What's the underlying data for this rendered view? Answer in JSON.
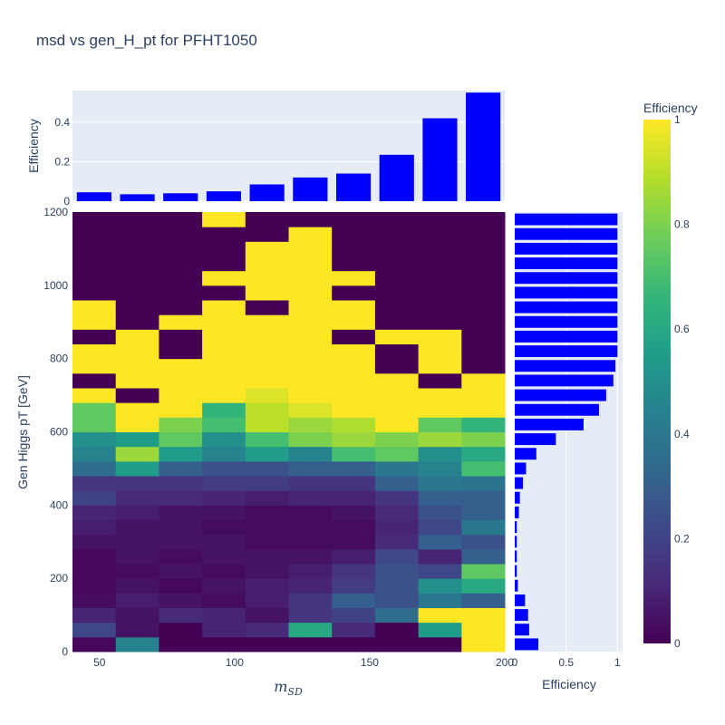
{
  "chart_data": {
    "type": "heatmap",
    "title": "msd vs gen_H_pt for PFHT1050",
    "colors": {
      "bar": "#0000ff",
      "panel_bg": "#e5ecf6",
      "text": "#2a3f5f",
      "colorscale": [
        "#440154",
        "#482878",
        "#3e4989",
        "#31688e",
        "#26828e",
        "#1f9e89",
        "#35b779",
        "#6ece58",
        "#b5de2b",
        "#fde725"
      ]
    },
    "main": {
      "xlabel": "m_SD",
      "ylabel": "Gen Higgs pT [GeV]",
      "xlim": [
        40,
        200
      ],
      "ylim": [
        0,
        1200
      ],
      "x_ticks": [
        "50",
        "100",
        "150",
        "200"
      ],
      "y_ticks": [
        "0",
        "200",
        "400",
        "600",
        "800",
        "1000",
        "1200"
      ],
      "x_bin_edges": [
        40,
        56,
        72,
        88,
        104,
        120,
        136,
        152,
        168,
        184,
        200
      ],
      "y_bin_edges": [
        0,
        40,
        80,
        120,
        160,
        200,
        240,
        280,
        320,
        360,
        400,
        440,
        480,
        520,
        560,
        600,
        640,
        680,
        720,
        760,
        800,
        840,
        880,
        920,
        960,
        1000,
        1040,
        1080,
        1120,
        1160,
        1200
      ],
      "z": [
        [
          0.02,
          0.45,
          0.0,
          0.0,
          0.0,
          0.0,
          0.0,
          0.0,
          0.0,
          1.0
        ],
        [
          0.22,
          0.05,
          0.0,
          0.1,
          0.12,
          0.6,
          0.12,
          0.0,
          0.55,
          1.0
        ],
        [
          0.1,
          0.05,
          0.12,
          0.1,
          0.05,
          0.15,
          0.2,
          0.35,
          1.0,
          1.0
        ],
        [
          0.03,
          0.08,
          0.05,
          0.03,
          0.08,
          0.15,
          0.3,
          0.25,
          0.4,
          0.3
        ],
        [
          0.02,
          0.05,
          0.02,
          0.05,
          0.08,
          0.1,
          0.18,
          0.25,
          0.5,
          0.6
        ],
        [
          0.02,
          0.03,
          0.05,
          0.03,
          0.05,
          0.08,
          0.15,
          0.25,
          0.22,
          0.75
        ],
        [
          0.02,
          0.05,
          0.03,
          0.05,
          0.05,
          0.05,
          0.08,
          0.22,
          0.1,
          0.3
        ],
        [
          0.05,
          0.05,
          0.05,
          0.05,
          0.03,
          0.03,
          0.03,
          0.12,
          0.3,
          0.25
        ],
        [
          0.08,
          0.05,
          0.05,
          0.03,
          0.03,
          0.03,
          0.03,
          0.1,
          0.22,
          0.4
        ],
        [
          0.1,
          0.08,
          0.05,
          0.05,
          0.03,
          0.03,
          0.05,
          0.12,
          0.25,
          0.3
        ],
        [
          0.2,
          0.12,
          0.12,
          0.1,
          0.08,
          0.1,
          0.1,
          0.15,
          0.3,
          0.3
        ],
        [
          0.15,
          0.15,
          0.15,
          0.18,
          0.18,
          0.15,
          0.15,
          0.3,
          0.4,
          0.38
        ],
        [
          0.35,
          0.55,
          0.3,
          0.25,
          0.25,
          0.3,
          0.3,
          0.4,
          0.45,
          0.7
        ],
        [
          0.45,
          0.85,
          0.55,
          0.45,
          0.55,
          0.45,
          0.7,
          0.75,
          0.5,
          0.6
        ],
        [
          0.5,
          0.55,
          0.75,
          0.5,
          0.7,
          0.8,
          0.85,
          0.8,
          0.85,
          0.8
        ],
        [
          0.75,
          1.0,
          0.8,
          0.7,
          0.9,
          0.85,
          0.88,
          1.0,
          0.75,
          0.65
        ],
        [
          0.75,
          1.0,
          1.0,
          0.65,
          0.9,
          0.95,
          1.0,
          1.0,
          1.0,
          1.0
        ],
        [
          1.0,
          0.0,
          1.0,
          1.0,
          0.95,
          1.0,
          1.0,
          1.0,
          1.0,
          1.0
        ],
        [
          0.0,
          1.0,
          1.0,
          1.0,
          1.0,
          1.0,
          1.0,
          1.0,
          0.0,
          1.0
        ],
        [
          1.0,
          1.0,
          1.0,
          1.0,
          1.0,
          1.0,
          1.0,
          0.0,
          1.0,
          0.0
        ],
        [
          1.0,
          1.0,
          0.0,
          1.0,
          1.0,
          1.0,
          1.0,
          0.0,
          1.0,
          0.0
        ],
        [
          0.0,
          1.0,
          0.0,
          1.0,
          1.0,
          1.0,
          0.0,
          1.0,
          1.0,
          0.0
        ],
        [
          1.0,
          0.0,
          1.0,
          1.0,
          1.0,
          1.0,
          1.0,
          0.0,
          0.0,
          0.0
        ],
        [
          1.0,
          0.0,
          0.0,
          1.0,
          0.0,
          1.0,
          1.0,
          0.0,
          0.0,
          0.0
        ],
        [
          0.0,
          0.0,
          0.0,
          0.0,
          1.0,
          1.0,
          0.0,
          0.0,
          0.0,
          0.0
        ],
        [
          0.0,
          0.0,
          0.0,
          1.0,
          1.0,
          1.0,
          1.0,
          0.0,
          0.0,
          0.0
        ],
        [
          0.0,
          0.0,
          0.0,
          0.0,
          1.0,
          1.0,
          0.0,
          0.0,
          0.0,
          0.0
        ],
        [
          0.0,
          0.0,
          0.0,
          0.0,
          1.0,
          1.0,
          0.0,
          0.0,
          0.0,
          0.0
        ],
        [
          0.0,
          0.0,
          0.0,
          0.0,
          0.0,
          1.0,
          0.0,
          0.0,
          0.0,
          0.0
        ],
        [
          0.0,
          0.0,
          0.0,
          1.0,
          0.0,
          0.0,
          0.0,
          0.0,
          0.0,
          0.0
        ]
      ]
    },
    "top_histogram": {
      "type": "bar",
      "ylabel": "Efficiency",
      "ylim": [
        0,
        0.56
      ],
      "y_ticks": [
        "0",
        "0.2",
        "0.4"
      ],
      "x_bin_edges": [
        40,
        56,
        72,
        88,
        104,
        120,
        136,
        152,
        168,
        184,
        200
      ],
      "values": [
        0.045,
        0.035,
        0.04,
        0.05,
        0.085,
        0.12,
        0.14,
        0.235,
        0.42,
        0.55
      ]
    },
    "right_histogram": {
      "type": "bar",
      "orientation": "horizontal",
      "xlabel": "Efficiency",
      "xlim": [
        0,
        1.05
      ],
      "x_ticks": [
        "0",
        "0.5",
        "1"
      ],
      "y_bin_edges_note": "shares y bins with main heatmap",
      "values": [
        0.23,
        0.14,
        0.13,
        0.1,
        0.03,
        0.02,
        0.02,
        0.02,
        0.02,
        0.04,
        0.05,
        0.08,
        0.11,
        0.21,
        0.4,
        0.67,
        0.82,
        0.89,
        0.96,
        0.98,
        1.0,
        1.0,
        1.0,
        1.0,
        1.0,
        1.0,
        1.0,
        1.0,
        1.0,
        1.0
      ]
    },
    "colorbar": {
      "title": "Efficiency",
      "range": [
        0,
        1
      ],
      "ticks": [
        "0",
        "0.2",
        "0.4",
        "0.6",
        "0.8",
        "1"
      ]
    }
  }
}
